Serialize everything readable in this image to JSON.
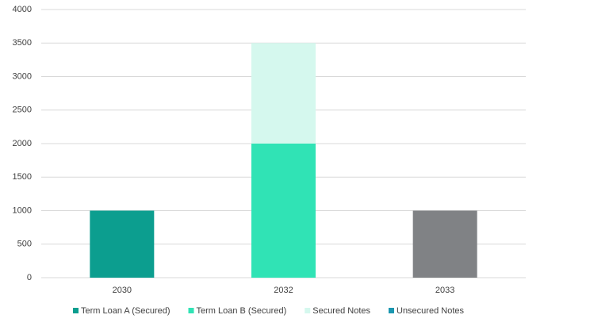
{
  "chart_data": {
    "type": "stacked_bar",
    "categories": [
      "2030",
      "2032",
      "2033"
    ],
    "series": [
      {
        "name": "Term Loan A (Secured)",
        "color": "#0c9e8f",
        "values": [
          1000,
          null,
          null
        ]
      },
      {
        "name": "Term Loan B (Secured)",
        "color": "#30e3b5",
        "values": [
          null,
          2000,
          null
        ]
      },
      {
        "name": "Secured Notes",
        "color": "#d5f8ee",
        "values": [
          null,
          1500,
          null
        ]
      },
      {
        "name": "Unsecured Notes",
        "color": "#1b97b0",
        "values": [
          null,
          null,
          1000
        ],
        "point_colors": [
          "#1b97b0",
          "#1b97b0",
          "#808285"
        ]
      }
    ],
    "ylim": [
      0,
      4000
    ],
    "yticks": [
      0,
      500,
      1000,
      1500,
      2000,
      2500,
      3000,
      3500,
      4000
    ],
    "grid": true,
    "legend": "bottom"
  }
}
